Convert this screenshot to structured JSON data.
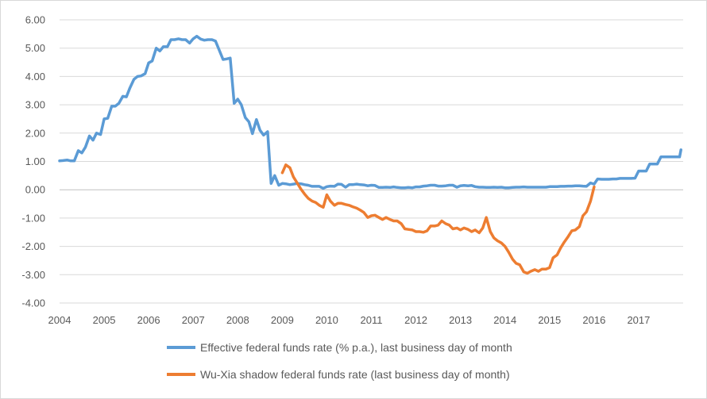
{
  "chart_data": {
    "type": "line",
    "title": "",
    "xlabel": "",
    "ylabel": "",
    "xlim": [
      2004,
      2018
    ],
    "ylim": [
      -4,
      6
    ],
    "grid": "horizontal",
    "legend_position": "bottom",
    "x_tick_labels": [
      "2004",
      "2005",
      "2006",
      "2007",
      "2008",
      "2009",
      "2010",
      "2011",
      "2012",
      "2013",
      "2014",
      "2015",
      "2016",
      "2017"
    ],
    "y_tick_labels": [
      "6.00",
      "5.00",
      "4.00",
      "3.00",
      "2.00",
      "1.00",
      "0.00",
      "-1.00",
      "-2.00",
      "-3.00",
      "-4.00"
    ],
    "series": [
      {
        "name": "Effective federal funds rate (% p.a.), last business day of month",
        "color": "#5b9bd5",
        "points": [
          [
            2004.0,
            1.02
          ],
          [
            2004.08,
            1.03
          ],
          [
            2004.17,
            1.05
          ],
          [
            2004.25,
            1.02
          ],
          [
            2004.33,
            1.02
          ],
          [
            2004.42,
            1.38
          ],
          [
            2004.5,
            1.3
          ],
          [
            2004.58,
            1.5
          ],
          [
            2004.67,
            1.9
          ],
          [
            2004.75,
            1.75
          ],
          [
            2004.83,
            2.0
          ],
          [
            2004.92,
            1.95
          ],
          [
            2005.0,
            2.5
          ],
          [
            2005.08,
            2.52
          ],
          [
            2005.17,
            2.95
          ],
          [
            2005.25,
            2.95
          ],
          [
            2005.33,
            3.05
          ],
          [
            2005.42,
            3.3
          ],
          [
            2005.5,
            3.28
          ],
          [
            2005.58,
            3.6
          ],
          [
            2005.67,
            3.9
          ],
          [
            2005.75,
            4.0
          ],
          [
            2005.83,
            4.02
          ],
          [
            2005.92,
            4.1
          ],
          [
            2006.0,
            4.48
          ],
          [
            2006.08,
            4.55
          ],
          [
            2006.17,
            5.0
          ],
          [
            2006.25,
            4.9
          ],
          [
            2006.33,
            5.05
          ],
          [
            2006.42,
            5.05
          ],
          [
            2006.5,
            5.3
          ],
          [
            2006.58,
            5.3
          ],
          [
            2006.67,
            5.33
          ],
          [
            2006.75,
            5.3
          ],
          [
            2006.83,
            5.3
          ],
          [
            2006.92,
            5.18
          ],
          [
            2007.0,
            5.33
          ],
          [
            2007.08,
            5.42
          ],
          [
            2007.17,
            5.32
          ],
          [
            2007.25,
            5.28
          ],
          [
            2007.33,
            5.3
          ],
          [
            2007.42,
            5.3
          ],
          [
            2007.5,
            5.25
          ],
          [
            2007.58,
            4.95
          ],
          [
            2007.67,
            4.6
          ],
          [
            2007.75,
            4.62
          ],
          [
            2007.83,
            4.65
          ],
          [
            2007.92,
            3.05
          ],
          [
            2008.0,
            3.2
          ],
          [
            2008.08,
            3.0
          ],
          [
            2008.17,
            2.55
          ],
          [
            2008.25,
            2.4
          ],
          [
            2008.33,
            1.98
          ],
          [
            2008.42,
            2.48
          ],
          [
            2008.5,
            2.1
          ],
          [
            2008.58,
            1.93
          ],
          [
            2008.67,
            2.05
          ],
          [
            2008.75,
            0.22
          ],
          [
            2008.83,
            0.5
          ],
          [
            2008.92,
            0.16
          ],
          [
            2009.0,
            0.22
          ],
          [
            2009.08,
            0.21
          ],
          [
            2009.17,
            0.18
          ],
          [
            2009.25,
            0.2
          ],
          [
            2009.33,
            0.22
          ],
          [
            2009.42,
            0.21
          ],
          [
            2009.5,
            0.18
          ],
          [
            2009.58,
            0.16
          ],
          [
            2009.67,
            0.12
          ],
          [
            2009.75,
            0.12
          ],
          [
            2009.83,
            0.12
          ],
          [
            2009.92,
            0.05
          ],
          [
            2010.0,
            0.11
          ],
          [
            2010.08,
            0.13
          ],
          [
            2010.17,
            0.12
          ],
          [
            2010.25,
            0.2
          ],
          [
            2010.33,
            0.19
          ],
          [
            2010.42,
            0.09
          ],
          [
            2010.5,
            0.18
          ],
          [
            2010.58,
            0.18
          ],
          [
            2010.67,
            0.2
          ],
          [
            2010.75,
            0.18
          ],
          [
            2010.83,
            0.17
          ],
          [
            2010.92,
            0.14
          ],
          [
            2011.0,
            0.16
          ],
          [
            2011.08,
            0.15
          ],
          [
            2011.17,
            0.08
          ],
          [
            2011.25,
            0.08
          ],
          [
            2011.33,
            0.09
          ],
          [
            2011.42,
            0.08
          ],
          [
            2011.5,
            0.1
          ],
          [
            2011.58,
            0.08
          ],
          [
            2011.67,
            0.07
          ],
          [
            2011.75,
            0.07
          ],
          [
            2011.83,
            0.08
          ],
          [
            2011.92,
            0.07
          ],
          [
            2012.0,
            0.1
          ],
          [
            2012.08,
            0.1
          ],
          [
            2012.17,
            0.13
          ],
          [
            2012.25,
            0.14
          ],
          [
            2012.33,
            0.16
          ],
          [
            2012.42,
            0.16
          ],
          [
            2012.5,
            0.13
          ],
          [
            2012.58,
            0.13
          ],
          [
            2012.67,
            0.14
          ],
          [
            2012.75,
            0.16
          ],
          [
            2012.83,
            0.16
          ],
          [
            2012.92,
            0.09
          ],
          [
            2013.0,
            0.14
          ],
          [
            2013.08,
            0.15
          ],
          [
            2013.17,
            0.14
          ],
          [
            2013.25,
            0.15
          ],
          [
            2013.33,
            0.11
          ],
          [
            2013.42,
            0.09
          ],
          [
            2013.5,
            0.09
          ],
          [
            2013.58,
            0.08
          ],
          [
            2013.67,
            0.08
          ],
          [
            2013.75,
            0.09
          ],
          [
            2013.83,
            0.08
          ],
          [
            2013.92,
            0.09
          ],
          [
            2014.0,
            0.07
          ],
          [
            2014.08,
            0.07
          ],
          [
            2014.17,
            0.08
          ],
          [
            2014.25,
            0.09
          ],
          [
            2014.33,
            0.09
          ],
          [
            2014.42,
            0.1
          ],
          [
            2014.5,
            0.09
          ],
          [
            2014.58,
            0.09
          ],
          [
            2014.67,
            0.09
          ],
          [
            2014.75,
            0.09
          ],
          [
            2014.83,
            0.09
          ],
          [
            2014.92,
            0.09
          ],
          [
            2015.0,
            0.11
          ],
          [
            2015.08,
            0.11
          ],
          [
            2015.17,
            0.11
          ],
          [
            2015.25,
            0.12
          ],
          [
            2015.33,
            0.12
          ],
          [
            2015.42,
            0.13
          ],
          [
            2015.5,
            0.13
          ],
          [
            2015.58,
            0.14
          ],
          [
            2015.67,
            0.14
          ],
          [
            2015.75,
            0.13
          ],
          [
            2015.83,
            0.12
          ],
          [
            2015.92,
            0.24
          ],
          [
            2016.0,
            0.2
          ],
          [
            2016.08,
            0.38
          ],
          [
            2016.17,
            0.37
          ],
          [
            2016.25,
            0.37
          ],
          [
            2016.33,
            0.37
          ],
          [
            2016.42,
            0.38
          ],
          [
            2016.5,
            0.38
          ],
          [
            2016.58,
            0.4
          ],
          [
            2016.67,
            0.4
          ],
          [
            2016.75,
            0.4
          ],
          [
            2016.83,
            0.4
          ],
          [
            2016.92,
            0.41
          ],
          [
            2017.0,
            0.66
          ],
          [
            2017.08,
            0.66
          ],
          [
            2017.17,
            0.66
          ],
          [
            2017.25,
            0.91
          ],
          [
            2017.33,
            0.91
          ],
          [
            2017.42,
            0.91
          ],
          [
            2017.5,
            1.16
          ],
          [
            2017.58,
            1.16
          ],
          [
            2017.67,
            1.16
          ],
          [
            2017.75,
            1.16
          ],
          [
            2017.83,
            1.16
          ],
          [
            2017.92,
            1.16
          ],
          [
            2017.95,
            1.41
          ]
        ]
      },
      {
        "name": "Wu-Xia shadow federal funds rate (last business day of month)",
        "color": "#ed7d31",
        "points": [
          [
            2009.0,
            0.6
          ],
          [
            2009.08,
            0.88
          ],
          [
            2009.17,
            0.78
          ],
          [
            2009.25,
            0.45
          ],
          [
            2009.33,
            0.25
          ],
          [
            2009.42,
            0.02
          ],
          [
            2009.5,
            -0.15
          ],
          [
            2009.58,
            -0.3
          ],
          [
            2009.67,
            -0.4
          ],
          [
            2009.75,
            -0.45
          ],
          [
            2009.83,
            -0.55
          ],
          [
            2009.92,
            -0.62
          ],
          [
            2010.0,
            -0.18
          ],
          [
            2010.08,
            -0.4
          ],
          [
            2010.17,
            -0.55
          ],
          [
            2010.25,
            -0.48
          ],
          [
            2010.33,
            -0.48
          ],
          [
            2010.42,
            -0.52
          ],
          [
            2010.5,
            -0.55
          ],
          [
            2010.58,
            -0.6
          ],
          [
            2010.67,
            -0.65
          ],
          [
            2010.75,
            -0.72
          ],
          [
            2010.83,
            -0.8
          ],
          [
            2010.92,
            -0.98
          ],
          [
            2011.0,
            -0.92
          ],
          [
            2011.08,
            -0.9
          ],
          [
            2011.17,
            -0.98
          ],
          [
            2011.25,
            -1.05
          ],
          [
            2011.33,
            -0.98
          ],
          [
            2011.42,
            -1.05
          ],
          [
            2011.5,
            -1.1
          ],
          [
            2011.58,
            -1.1
          ],
          [
            2011.67,
            -1.2
          ],
          [
            2011.75,
            -1.38
          ],
          [
            2011.83,
            -1.4
          ],
          [
            2011.92,
            -1.42
          ],
          [
            2012.0,
            -1.48
          ],
          [
            2012.08,
            -1.48
          ],
          [
            2012.17,
            -1.5
          ],
          [
            2012.25,
            -1.45
          ],
          [
            2012.33,
            -1.28
          ],
          [
            2012.42,
            -1.28
          ],
          [
            2012.5,
            -1.25
          ],
          [
            2012.58,
            -1.1
          ],
          [
            2012.67,
            -1.2
          ],
          [
            2012.75,
            -1.25
          ],
          [
            2012.83,
            -1.38
          ],
          [
            2012.92,
            -1.35
          ],
          [
            2013.0,
            -1.42
          ],
          [
            2013.08,
            -1.35
          ],
          [
            2013.17,
            -1.4
          ],
          [
            2013.25,
            -1.48
          ],
          [
            2013.33,
            -1.42
          ],
          [
            2013.42,
            -1.52
          ],
          [
            2013.5,
            -1.35
          ],
          [
            2013.58,
            -0.98
          ],
          [
            2013.67,
            -1.48
          ],
          [
            2013.75,
            -1.7
          ],
          [
            2013.83,
            -1.8
          ],
          [
            2013.92,
            -1.88
          ],
          [
            2014.0,
            -2.0
          ],
          [
            2014.08,
            -2.2
          ],
          [
            2014.17,
            -2.45
          ],
          [
            2014.25,
            -2.6
          ],
          [
            2014.33,
            -2.65
          ],
          [
            2014.42,
            -2.9
          ],
          [
            2014.5,
            -2.95
          ],
          [
            2014.58,
            -2.88
          ],
          [
            2014.67,
            -2.82
          ],
          [
            2014.75,
            -2.88
          ],
          [
            2014.83,
            -2.8
          ],
          [
            2014.92,
            -2.8
          ],
          [
            2015.0,
            -2.75
          ],
          [
            2015.08,
            -2.4
          ],
          [
            2015.17,
            -2.3
          ],
          [
            2015.25,
            -2.05
          ],
          [
            2015.33,
            -1.85
          ],
          [
            2015.42,
            -1.65
          ],
          [
            2015.5,
            -1.45
          ],
          [
            2015.58,
            -1.42
          ],
          [
            2015.67,
            -1.3
          ],
          [
            2015.75,
            -0.92
          ],
          [
            2015.83,
            -0.78
          ],
          [
            2015.92,
            -0.4
          ],
          [
            2016.0,
            0.1
          ]
        ]
      }
    ]
  }
}
